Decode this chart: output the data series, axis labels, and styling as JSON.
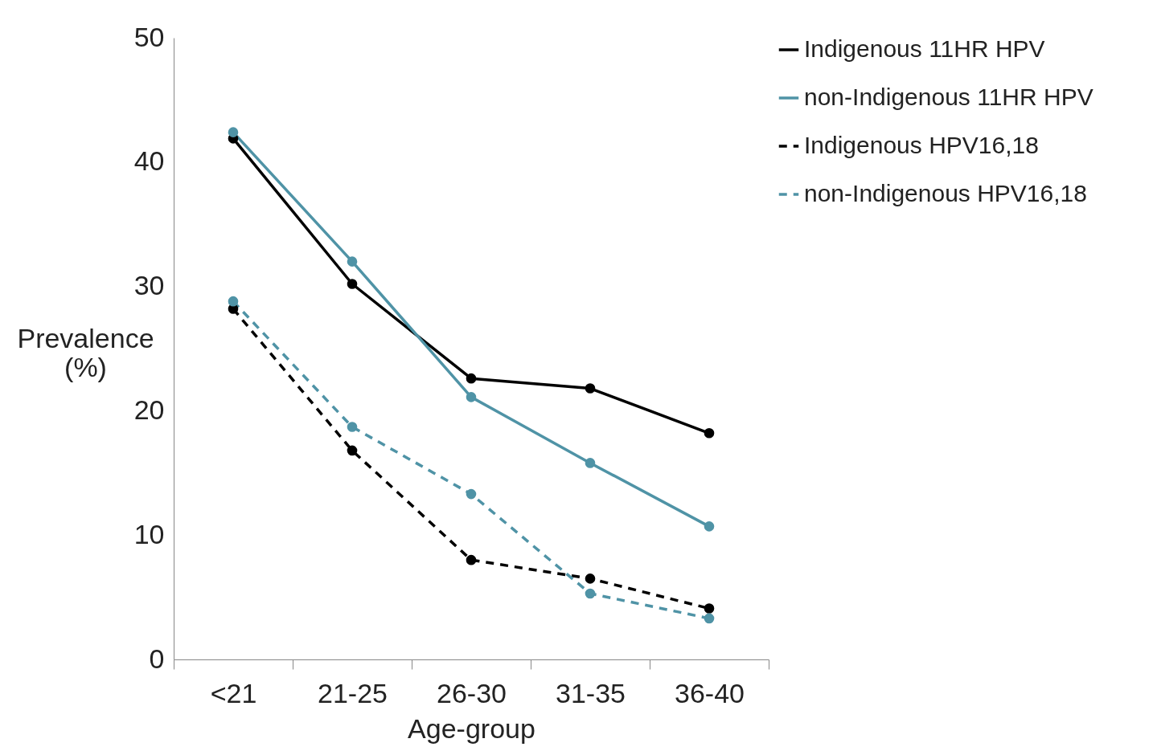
{
  "chart_data": {
    "type": "line",
    "xlabel": "Age-group",
    "ylabel": "Prevalence (%)",
    "categories": [
      "<21",
      "21-25",
      "26-30",
      "31-35",
      "36-40"
    ],
    "series": [
      {
        "name": "Indigenous 11HR HPV",
        "color": "#000000",
        "line_style": "solid",
        "values": [
          41.9,
          30.2,
          22.6,
          21.8,
          18.2
        ]
      },
      {
        "name": "non-Indigenous 11HR HPV",
        "color": "#4f93a6",
        "line_style": "solid",
        "values": [
          42.4,
          32.0,
          21.1,
          15.8,
          10.7
        ]
      },
      {
        "name": "Indigenous HPV16,18",
        "color": "#000000",
        "line_style": "dashed",
        "values": [
          28.2,
          16.8,
          8.0,
          6.5,
          4.1
        ]
      },
      {
        "name": "non-Indigenous HPV16,18",
        "color": "#4f93a6",
        "line_style": "dashed",
        "values": [
          28.8,
          18.7,
          13.3,
          5.3,
          3.3
        ]
      }
    ],
    "ylim": [
      0,
      50
    ],
    "yticks": [
      0,
      10,
      20,
      30,
      40,
      50
    ],
    "grid": false,
    "legend": "right",
    "marker": "circle"
  }
}
